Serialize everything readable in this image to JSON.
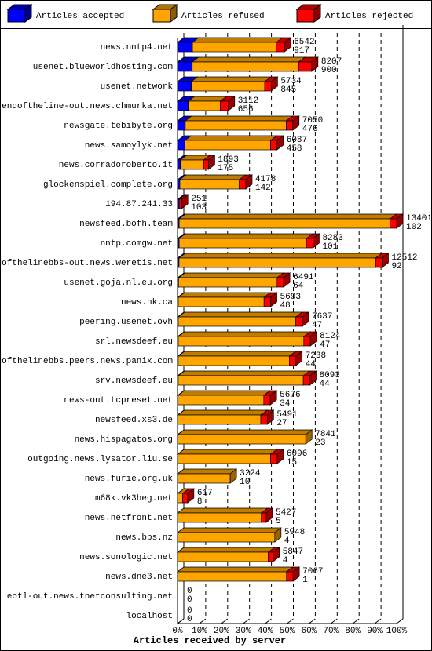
{
  "chart_data": {
    "type": "bar3d-stacked-horizontal",
    "x_label": "Articles received by server",
    "categories": [
      "news.nntp4.net",
      "usenet.blueworldhosting.com",
      "usenet.network",
      "endoftheline-out.news.chmurka.net",
      "newsgate.tebibyte.org",
      "news.samoylyk.net",
      "news.corradoroberto.it",
      "glockenspiel.complete.org",
      "194.87.241.33",
      "newsfeed.bofh.team",
      "nntp.comgw.net",
      "endofthelinebbs-out.news.weretis.net",
      "usenet.goja.nl.eu.org",
      "news.nk.ca",
      "peering.usenet.ovh",
      "srl.newsdeef.eu",
      "endofthelinebbs.peers.news.panix.com",
      "srv.newsdeef.eu",
      "news-out.tcpreset.net",
      "newsfeed.xs3.de",
      "news.hispagatos.org",
      "outgoing.news.lysator.liu.se",
      "news.furie.org.uk",
      "m68k.vk3heg.net",
      "news.netfront.net",
      "news.bbs.nz",
      "news.sonologic.net",
      "news.dne3.net",
      "eotl-out.news.tnetconsulting.net",
      "localhost"
    ],
    "totals": [
      6542,
      8207,
      5734,
      3112,
      7050,
      6087,
      1893,
      4178,
      251,
      13401,
      8283,
      12512,
      6491,
      5693,
      7637,
      8124,
      7238,
      8093,
      5676,
      5491,
      7841,
      6096,
      3224,
      617,
      5427,
      5948,
      5847,
      7067,
      0,
      0
    ],
    "series": [
      {
        "name": "Articles accepted",
        "color": "#0000ff",
        "values": [
          917,
          900,
          845,
          656,
          476,
          458,
          175,
          142,
          103,
          102,
          101,
          92,
          64,
          48,
          47,
          47,
          44,
          44,
          34,
          27,
          23,
          15,
          10,
          8,
          5,
          4,
          4,
          1,
          0,
          0
        ]
      },
      {
        "name": "Articles refused",
        "color": "#ffa500",
        "values": [
          5125,
          6507,
          4489,
          1956,
          6174,
          5229,
          1418,
          3636,
          0,
          12899,
          7782,
          12020,
          6027,
          5245,
          7190,
          7677,
          6794,
          7649,
          5242,
          5064,
          7818,
          5681,
          3214,
          309,
          5122,
          5944,
          5543,
          6666,
          0,
          0
        ]
      },
      {
        "name": "Articles rejected",
        "color": "#ff0000",
        "values": [
          500,
          800,
          400,
          500,
          400,
          400,
          300,
          400,
          148,
          400,
          400,
          400,
          400,
          400,
          400,
          400,
          400,
          400,
          400,
          400,
          0,
          400,
          0,
          300,
          300,
          0,
          300,
          400,
          0,
          0
        ]
      }
    ],
    "xlim": [
      0,
      13401
    ],
    "xticks": [
      {
        "value": 0,
        "label": "0%"
      },
      {
        "value": 1340.1,
        "label": "10%"
      },
      {
        "value": 2680.2,
        "label": "20%"
      },
      {
        "value": 4020.3,
        "label": "30%"
      },
      {
        "value": 5360.4,
        "label": "40%"
      },
      {
        "value": 6700.5,
        "label": "50%"
      },
      {
        "value": 8040.6,
        "label": "60%"
      },
      {
        "value": 9380.7,
        "label": "70%"
      },
      {
        "value": 10720.8,
        "label": "80%"
      },
      {
        "value": 12060.9,
        "label": "90%"
      },
      {
        "value": 13401,
        "label": "100%"
      }
    ],
    "grid": true
  }
}
